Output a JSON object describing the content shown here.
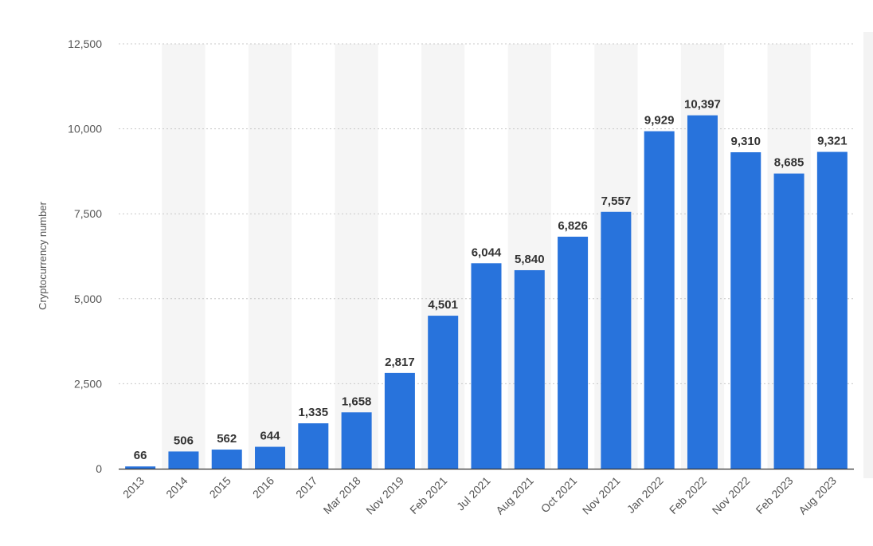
{
  "chart_data": {
    "type": "bar",
    "title": "",
    "xlabel": "",
    "ylabel": "Cryptocurrency number",
    "ylim": [
      0,
      12500
    ],
    "yticks": [
      0,
      2500,
      5000,
      7500,
      10000,
      12500
    ],
    "ytick_labels": [
      "0",
      "2,500",
      "5,000",
      "7,500",
      "10,000",
      "12,500"
    ],
    "categories": [
      "2013",
      "2014",
      "2015",
      "2016",
      "2017",
      "Mar 2018",
      "Nov 2019",
      "Feb 2021",
      "Jul 2021",
      "Aug 2021",
      "Oct 2021",
      "Nov 2021",
      "Jan 2022",
      "Feb 2022",
      "Nov 2022",
      "Feb 2023",
      "Aug 2023"
    ],
    "values": [
      66,
      506,
      562,
      644,
      1335,
      1658,
      2817,
      4501,
      6044,
      5840,
      6826,
      7557,
      9929,
      10397,
      9310,
      8685,
      9321
    ],
    "value_labels": [
      "66",
      "506",
      "562",
      "644",
      "1,335",
      "1,658",
      "2,817",
      "4,501",
      "6,044",
      "5,840",
      "6,826",
      "7,557",
      "9,929",
      "10,397",
      "9,310",
      "8,685",
      "9,321"
    ],
    "grid": "horizontal dotted",
    "alternating_column_shading": true,
    "colors": {
      "bar": "#2873dc",
      "band": "#f5f5f5",
      "grid": "#c8c8c8",
      "axis": "#333333"
    }
  }
}
